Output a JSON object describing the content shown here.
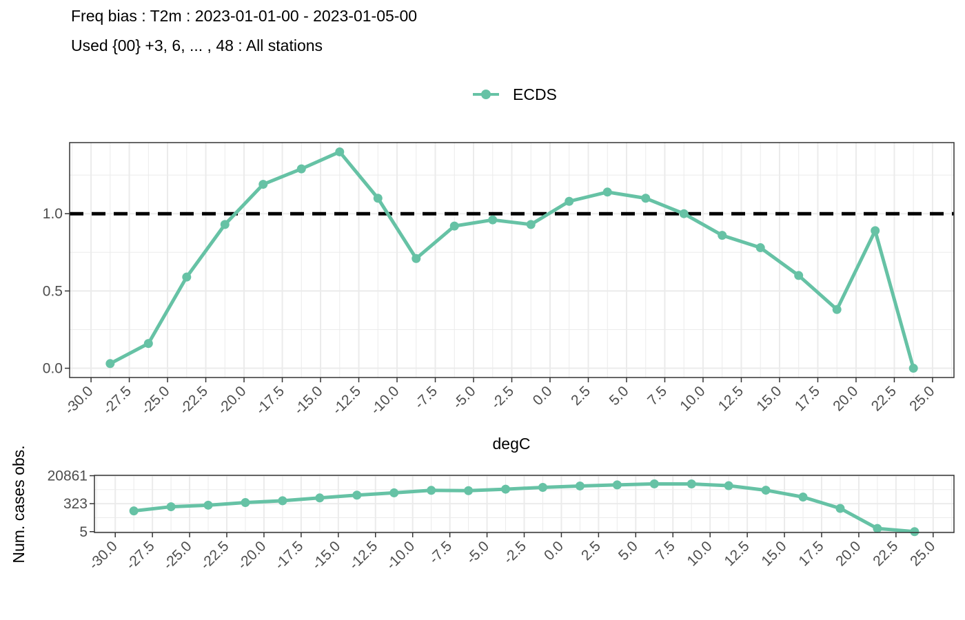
{
  "title": "Freq bias : T2m : 2023-01-01-00 - 2023-01-05-00",
  "subtitle": "Used {00} +3, 6, ... , 48 : All stations",
  "colors": {
    "series": "#66C2A5",
    "reference": "#000000",
    "grid": "#ebebeb",
    "panel_border": "#333333"
  },
  "chart_data": [
    {
      "type": "line",
      "legend_position": "top",
      "grid": true,
      "x": [
        -28.75,
        -26.25,
        -23.75,
        -21.25,
        -18.75,
        -16.25,
        -13.75,
        -11.25,
        -8.75,
        -6.25,
        -3.75,
        -1.25,
        1.25,
        3.75,
        6.25,
        8.75,
        11.25,
        13.75,
        16.25,
        18.75,
        21.25,
        23.75
      ],
      "series": [
        {
          "name": "ECDS",
          "values": [
            0.03,
            0.16,
            0.59,
            0.93,
            1.19,
            1.29,
            1.4,
            1.1,
            0.71,
            0.92,
            0.96,
            0.93,
            1.08,
            1.14,
            1.1,
            1.0,
            0.86,
            0.78,
            0.6,
            0.38,
            0.89,
            0.0
          ]
        }
      ],
      "reference_line": {
        "y": 1.0,
        "style": "dashed"
      },
      "xlim": [
        -31.4,
        26.4
      ],
      "ylim": [
        -0.06,
        1.46
      ],
      "x_ticks": [
        "-30.0",
        "-27.5",
        "-25.0",
        "-22.5",
        "-20.0",
        "-17.5",
        "-15.0",
        "-12.5",
        "-10.0",
        "-7.5",
        "-5.0",
        "-2.5",
        "0.0",
        "2.5",
        "5.0",
        "7.5",
        "10.0",
        "12.5",
        "15.0",
        "17.5",
        "20.0",
        "22.5",
        "25.0"
      ],
      "y_ticks": [
        "0.0",
        "0.5",
        "1.0"
      ],
      "xlabel": "degC",
      "ylabel": ""
    },
    {
      "type": "line",
      "grid": true,
      "y_scale": "log",
      "x": [
        -28.75,
        -26.25,
        -23.75,
        -21.25,
        -18.75,
        -16.25,
        -13.75,
        -11.25,
        -8.75,
        -6.25,
        -3.75,
        -1.25,
        1.25,
        3.75,
        6.25,
        8.75,
        11.25,
        13.75,
        16.25,
        18.75,
        21.25,
        23.75
      ],
      "series": [
        {
          "name": "ECDS",
          "values": [
            110,
            205,
            258,
            380,
            500,
            760,
            1150,
            1620,
            2350,
            2250,
            2800,
            3650,
            4500,
            5300,
            6200,
            6100,
            4700,
            2400,
            870,
            160,
            8,
            5
          ]
        }
      ],
      "xlim": [
        -31.4,
        26.4
      ],
      "ylim": [
        4.4,
        22000
      ],
      "x_ticks": [
        "-30.0",
        "-27.5",
        "-25.0",
        "-22.5",
        "-20.0",
        "-17.5",
        "-15.0",
        "-12.5",
        "-10.0",
        "-7.5",
        "-5.0",
        "-2.5",
        "0.0",
        "2.5",
        "5.0",
        "7.5",
        "10.0",
        "12.5",
        "15.0",
        "17.5",
        "20.0",
        "22.5",
        "25.0"
      ],
      "y_ticks": [
        "5",
        "323",
        "20861"
      ],
      "y_tick_values": [
        5,
        323,
        20861
      ],
      "xlabel": "",
      "ylabel": "Num. cases obs."
    }
  ]
}
